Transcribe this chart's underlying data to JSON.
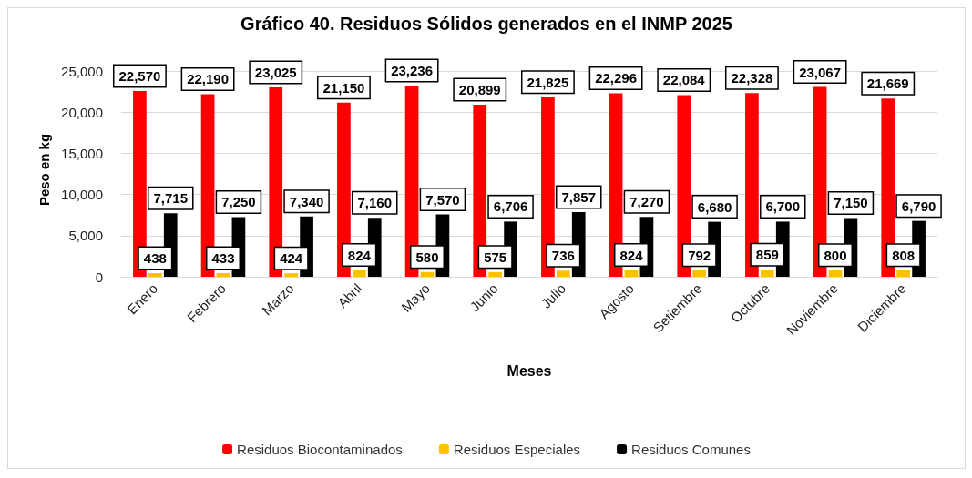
{
  "chart_data": {
    "type": "bar",
    "title": "Gráfico 40. Residuos Sólidos generados en el INMP 2025",
    "xlabel": "Meses",
    "ylabel": "Peso en kg",
    "categories": [
      "Enero",
      "Febrero",
      "Marzo",
      "Abril",
      "Mayo",
      "Junio",
      "Julio",
      "Agosto",
      "Setiembre",
      "Octubre",
      "Noviembre",
      "Diciembre"
    ],
    "series": [
      {
        "name": "Residuos Biocontaminados",
        "color": "#ff0000",
        "values": [
          22570,
          22190,
          23025,
          21150,
          23236,
          20899,
          21825,
          22296,
          22084,
          22328,
          23067,
          21669
        ],
        "value_labels": [
          "22,570",
          "22,190",
          "23,025",
          "21,150",
          "23,236",
          "20,899",
          "21,825",
          "22,296",
          "22,084",
          "22,328",
          "23,067",
          "21,669"
        ]
      },
      {
        "name": "Residuos Especiales",
        "color": "#ffc000",
        "values": [
          438,
          433,
          424,
          824,
          580,
          575,
          736,
          824,
          792,
          859,
          800,
          808
        ],
        "value_labels": [
          "438",
          "433",
          "424",
          "824",
          "580",
          "575",
          "736",
          "824",
          "792",
          "859",
          "800",
          "808"
        ]
      },
      {
        "name": "Residuos Comunes",
        "color": "#000000",
        "values": [
          7715,
          7250,
          7340,
          7160,
          7570,
          6706,
          7857,
          7270,
          6680,
          6700,
          7150,
          6790
        ],
        "value_labels": [
          "7,715",
          "7,250",
          "7,340",
          "7,160",
          "7,570",
          "6,706",
          "7,857",
          "7,270",
          "6,680",
          "6,700",
          "7,150",
          "6,790"
        ]
      }
    ],
    "ylim": [
      0,
      26000
    ],
    "yticks": [
      {
        "value": 0,
        "label": "0"
      },
      {
        "value": 5000,
        "label": "5,000"
      },
      {
        "value": 10000,
        "label": "10,000"
      },
      {
        "value": 15000,
        "label": "15,000"
      },
      {
        "value": 20000,
        "label": "20,000"
      },
      {
        "value": 25000,
        "label": "25,000"
      }
    ],
    "grid": "y",
    "legend": "bottom"
  }
}
